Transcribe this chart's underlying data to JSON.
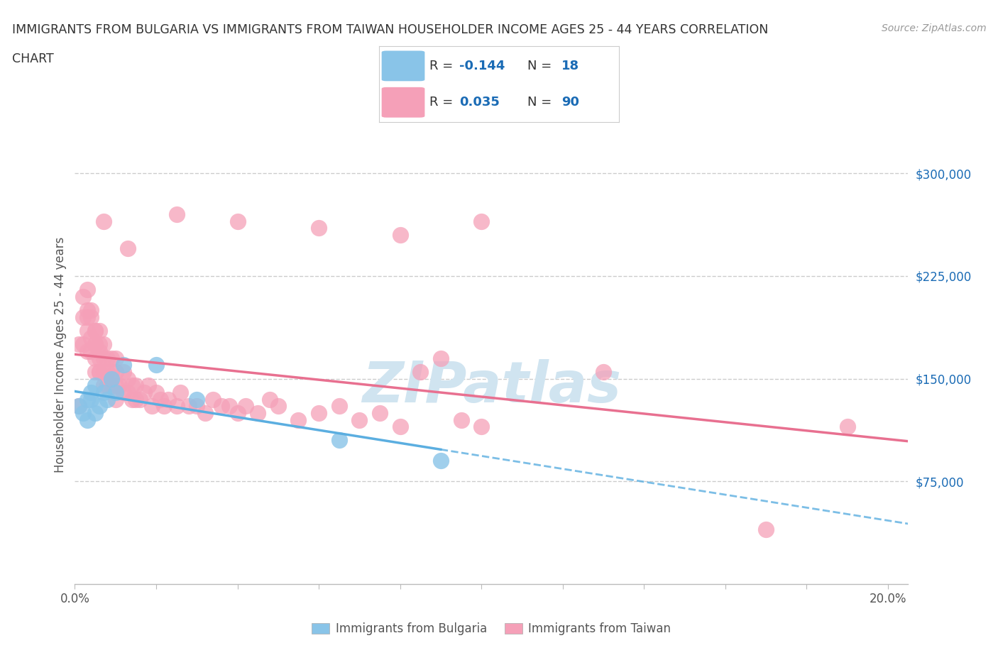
{
  "title_line1": "IMMIGRANTS FROM BULGARIA VS IMMIGRANTS FROM TAIWAN HOUSEHOLDER INCOME AGES 25 - 44 YEARS CORRELATION",
  "title_line2": "CHART",
  "source_text": "Source: ZipAtlas.com",
  "ylabel": "Householder Income Ages 25 - 44 years",
  "xlim": [
    0.0,
    0.205
  ],
  "ylim": [
    0,
    335000
  ],
  "xtick_positions": [
    0.0,
    0.02,
    0.04,
    0.06,
    0.08,
    0.1,
    0.12,
    0.14,
    0.16,
    0.18,
    0.2
  ],
  "ytick_right_values": [
    75000,
    150000,
    225000,
    300000
  ],
  "bg_color": "#ffffff",
  "grid_color": "#cccccc",
  "bulgaria_color": "#89c4e8",
  "taiwan_color": "#f5a0b8",
  "bulgaria_line_color": "#5baee0",
  "taiwan_line_color": "#e87090",
  "legend_value_color": "#1a6bb5",
  "watermark_color": "#d0e4f0",
  "bulgaria_R": -0.144,
  "bulgaria_N": 18,
  "taiwan_R": 0.035,
  "taiwan_N": 90,
  "bulgaria_scatter_x": [
    0.001,
    0.002,
    0.003,
    0.003,
    0.004,
    0.004,
    0.005,
    0.005,
    0.006,
    0.007,
    0.008,
    0.009,
    0.01,
    0.012,
    0.02,
    0.03,
    0.065,
    0.09
  ],
  "bulgaria_scatter_y": [
    130000,
    125000,
    135000,
    120000,
    140000,
    135000,
    125000,
    145000,
    130000,
    140000,
    135000,
    150000,
    140000,
    160000,
    160000,
    135000,
    105000,
    90000
  ],
  "taiwan_scatter_x": [
    0.001,
    0.001,
    0.002,
    0.002,
    0.002,
    0.003,
    0.003,
    0.003,
    0.003,
    0.003,
    0.004,
    0.004,
    0.004,
    0.004,
    0.005,
    0.005,
    0.005,
    0.005,
    0.005,
    0.005,
    0.006,
    0.006,
    0.006,
    0.006,
    0.006,
    0.006,
    0.007,
    0.007,
    0.007,
    0.007,
    0.008,
    0.008,
    0.008,
    0.009,
    0.009,
    0.009,
    0.01,
    0.01,
    0.01,
    0.01,
    0.011,
    0.012,
    0.012,
    0.013,
    0.013,
    0.014,
    0.014,
    0.015,
    0.015,
    0.016,
    0.017,
    0.018,
    0.019,
    0.02,
    0.021,
    0.022,
    0.023,
    0.025,
    0.026,
    0.028,
    0.03,
    0.032,
    0.034,
    0.036,
    0.038,
    0.04,
    0.042,
    0.045,
    0.048,
    0.05,
    0.055,
    0.06,
    0.065,
    0.07,
    0.075,
    0.08,
    0.085,
    0.09,
    0.095,
    0.1,
    0.007,
    0.013,
    0.025,
    0.04,
    0.06,
    0.08,
    0.1,
    0.13,
    0.17,
    0.19
  ],
  "taiwan_scatter_y": [
    175000,
    130000,
    210000,
    195000,
    175000,
    215000,
    200000,
    195000,
    185000,
    170000,
    200000,
    195000,
    180000,
    170000,
    185000,
    175000,
    165000,
    155000,
    185000,
    175000,
    175000,
    165000,
    155000,
    185000,
    170000,
    155000,
    175000,
    165000,
    155000,
    145000,
    165000,
    155000,
    145000,
    165000,
    155000,
    145000,
    165000,
    155000,
    145000,
    135000,
    145000,
    155000,
    140000,
    150000,
    140000,
    145000,
    135000,
    145000,
    135000,
    135000,
    140000,
    145000,
    130000,
    140000,
    135000,
    130000,
    135000,
    130000,
    140000,
    130000,
    130000,
    125000,
    135000,
    130000,
    130000,
    125000,
    130000,
    125000,
    135000,
    130000,
    120000,
    125000,
    130000,
    120000,
    125000,
    115000,
    155000,
    165000,
    120000,
    115000,
    265000,
    245000,
    270000,
    265000,
    260000,
    255000,
    265000,
    155000,
    40000,
    115000
  ]
}
